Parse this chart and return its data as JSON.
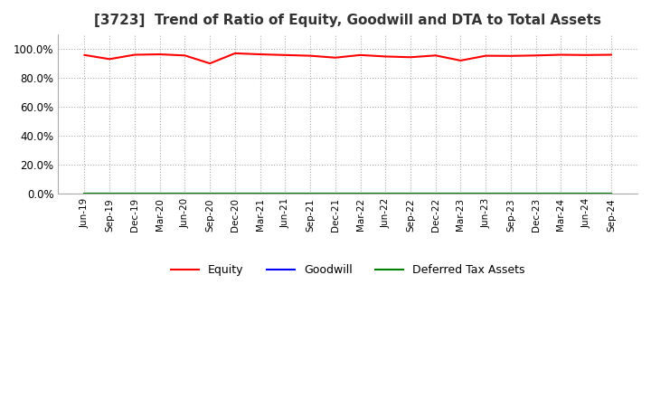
{
  "title": "[3723]  Trend of Ratio of Equity, Goodwill and DTA to Total Assets",
  "title_fontsize": 11,
  "ylim": [
    0.0,
    1.1
  ],
  "yticks": [
    0.0,
    0.2,
    0.4,
    0.6,
    0.8,
    1.0
  ],
  "grid_color": "#aaaaaa",
  "legend_labels": [
    "Equity",
    "Goodwill",
    "Deferred Tax Assets"
  ],
  "legend_colors": [
    "#ff0000",
    "#0000ff",
    "#008000"
  ],
  "x_labels": [
    "Jun-19",
    "Sep-19",
    "Dec-19",
    "Mar-20",
    "Jun-20",
    "Sep-20",
    "Dec-20",
    "Mar-21",
    "Jun-21",
    "Sep-21",
    "Dec-21",
    "Mar-22",
    "Jun-22",
    "Sep-22",
    "Dec-22",
    "Mar-23",
    "Jun-23",
    "Sep-23",
    "Dec-23",
    "Mar-24",
    "Jun-24",
    "Sep-24"
  ],
  "equity": [
    0.958,
    0.93,
    0.96,
    0.963,
    0.955,
    0.9,
    0.97,
    0.963,
    0.958,
    0.953,
    0.94,
    0.958,
    0.948,
    0.943,
    0.955,
    0.92,
    0.953,
    0.952,
    0.955,
    0.96,
    0.958,
    0.96
  ],
  "goodwill": [
    0.0,
    0.0,
    0.0,
    0.0,
    0.0,
    0.0,
    0.0,
    0.0,
    0.0,
    0.0,
    0.0,
    0.0,
    0.0,
    0.0,
    0.0,
    0.0,
    0.0,
    0.0,
    0.0,
    0.0,
    0.0,
    0.0
  ],
  "dta": [
    0.0,
    0.0,
    0.0,
    0.0,
    0.0,
    0.0,
    0.0,
    0.0,
    0.0,
    0.0,
    0.0,
    0.0,
    0.0,
    0.0,
    0.0,
    0.0,
    0.0,
    0.0,
    0.0,
    0.0,
    0.0,
    0.0
  ]
}
